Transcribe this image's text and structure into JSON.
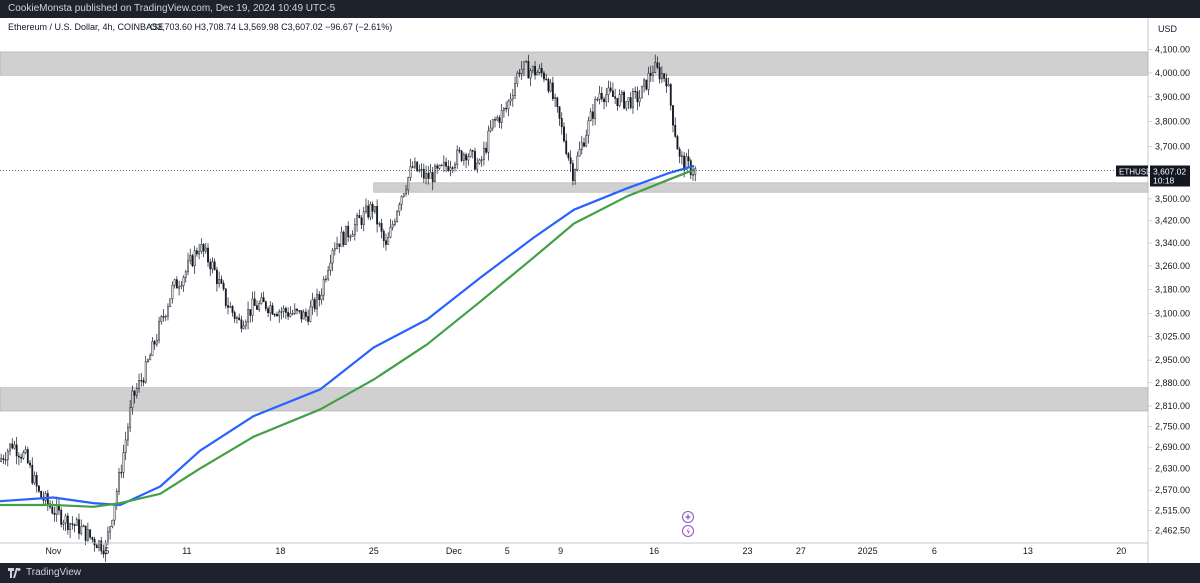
{
  "header": {
    "publish_line": "CookieMonsta published on TradingView.com, Dec 19, 2024 10:49 UTC-5"
  },
  "footer": {
    "brand": "TradingView"
  },
  "colors": {
    "background": "#ffffff",
    "frame": "#1e222d",
    "zone": "#d0d0d0",
    "ema_fast": "#2962ff",
    "ema_slow": "#43a047",
    "candle": "#131722",
    "badge": "#131722"
  },
  "icons": [
    "plus-circle-icon",
    "lightning-circle-icon",
    "tradingview-logo-icon"
  ],
  "chart_data": {
    "type": "candlestick",
    "title": "Ethereum / U.S. Dollar, 4h, COINBASE",
    "ohlc_label": "O3,703.60 H3,708.74 L3,569.98 C3,607.02 −96.67 (−2.61%)",
    "currency": "USD",
    "symbol_badge": "ETHUSD",
    "last_price": "3,607.02",
    "countdown": "10:18",
    "last_price_value": 3607.02,
    "y_scale": "log",
    "y_range": [
      2430,
      4240
    ],
    "x_range": [
      "2024-10-28",
      "2025-01-22"
    ],
    "x_ticks": [
      {
        "label": "Nov",
        "date": "2024-11-01"
      },
      {
        "label": "5",
        "date": "2024-11-05"
      },
      {
        "label": "11",
        "date": "2024-11-11"
      },
      {
        "label": "18",
        "date": "2024-11-18"
      },
      {
        "label": "25",
        "date": "2024-11-25"
      },
      {
        "label": "Dec",
        "date": "2024-12-01"
      },
      {
        "label": "5",
        "date": "2024-12-05"
      },
      {
        "label": "9",
        "date": "2024-12-09"
      },
      {
        "label": "16",
        "date": "2024-12-16"
      },
      {
        "label": "23",
        "date": "2024-12-23"
      },
      {
        "label": "27",
        "date": "2024-12-27"
      },
      {
        "label": "2025",
        "date": "2025-01-01"
      },
      {
        "label": "6",
        "date": "2025-01-06"
      },
      {
        "label": "13",
        "date": "2025-01-13"
      },
      {
        "label": "20",
        "date": "2025-01-20"
      }
    ],
    "y_ticks": [
      {
        "label": "4,100.00",
        "value": 4100
      },
      {
        "label": "4,000.00",
        "value": 4000
      },
      {
        "label": "3,900.00",
        "value": 3900
      },
      {
        "label": "3,800.00",
        "value": 3800
      },
      {
        "label": "3,700.00",
        "value": 3700
      },
      {
        "label": "3,600.00",
        "value": 3600
      },
      {
        "label": "3,500.00",
        "value": 3500
      },
      {
        "label": "3,420.00",
        "value": 3420
      },
      {
        "label": "3,340.00",
        "value": 3340
      },
      {
        "label": "3,260.00",
        "value": 3260
      },
      {
        "label": "3,180.00",
        "value": 3180
      },
      {
        "label": "3,100.00",
        "value": 3100
      },
      {
        "label": "3,025.00",
        "value": 3025
      },
      {
        "label": "2,950.00",
        "value": 2950
      },
      {
        "label": "2,880.00",
        "value": 2880
      },
      {
        "label": "2,810.00",
        "value": 2810
      },
      {
        "label": "2,750.00",
        "value": 2750
      },
      {
        "label": "2,690.00",
        "value": 2690
      },
      {
        "label": "2,630.00",
        "value": 2630
      },
      {
        "label": "2,570.00",
        "value": 2570
      },
      {
        "label": "2,515.00",
        "value": 2515
      },
      {
        "label": "2,462.50",
        "value": 2462.5
      }
    ],
    "zones": [
      {
        "name": "resistance",
        "y_low": 3990,
        "y_high": 4090,
        "x_start": "2024-10-28",
        "x_end": "2025-01-22"
      },
      {
        "name": "support",
        "y_low": 3525,
        "y_high": 3560,
        "x_start": "2024-11-25",
        "x_end": "2025-01-22"
      },
      {
        "name": "demand",
        "y_low": 2795,
        "y_high": 2865,
        "x_start": "2024-10-28",
        "x_end": "2025-01-22"
      }
    ],
    "price_path": [
      [
        "2024-10-28",
        2650
      ],
      [
        "2024-10-29",
        2700
      ],
      [
        "2024-10-30",
        2660
      ],
      [
        "2024-10-31",
        2560
      ],
      [
        "2024-11-01",
        2520
      ],
      [
        "2024-11-02",
        2490
      ],
      [
        "2024-11-03",
        2470
      ],
      [
        "2024-11-04",
        2440
      ],
      [
        "2024-11-05",
        2420
      ],
      [
        "2024-11-06",
        2600
      ],
      [
        "2024-11-07",
        2830
      ],
      [
        "2024-11-08",
        2920
      ],
      [
        "2024-11-09",
        3050
      ],
      [
        "2024-11-10",
        3180
      ],
      [
        "2024-11-11",
        3240
      ],
      [
        "2024-11-12",
        3330
      ],
      [
        "2024-11-13",
        3260
      ],
      [
        "2024-11-14",
        3140
      ],
      [
        "2024-11-15",
        3070
      ],
      [
        "2024-11-16",
        3120
      ],
      [
        "2024-11-17",
        3130
      ],
      [
        "2024-11-18",
        3110
      ],
      [
        "2024-11-19",
        3100
      ],
      [
        "2024-11-20",
        3090
      ],
      [
        "2024-11-21",
        3150
      ],
      [
        "2024-11-22",
        3330
      ],
      [
        "2024-11-23",
        3370
      ],
      [
        "2024-11-24",
        3420
      ],
      [
        "2024-11-25",
        3470
      ],
      [
        "2024-11-26",
        3320
      ],
      [
        "2024-11-27",
        3500
      ],
      [
        "2024-11-28",
        3620
      ],
      [
        "2024-11-29",
        3580
      ],
      [
        "2024-11-30",
        3600
      ],
      [
        "2024-12-01",
        3650
      ],
      [
        "2024-12-02",
        3680
      ],
      [
        "2024-12-03",
        3620
      ],
      [
        "2024-12-04",
        3790
      ],
      [
        "2024-12-05",
        3850
      ],
      [
        "2024-12-06",
        4020
      ],
      [
        "2024-12-07",
        4010
      ],
      [
        "2024-12-08",
        3990
      ],
      [
        "2024-12-09",
        3800
      ],
      [
        "2024-12-10",
        3600
      ],
      [
        "2024-12-11",
        3760
      ],
      [
        "2024-12-12",
        3920
      ],
      [
        "2024-12-13",
        3900
      ],
      [
        "2024-12-14",
        3880
      ],
      [
        "2024-12-15",
        3900
      ],
      [
        "2024-12-16",
        4020
      ],
      [
        "2024-12-17",
        3980
      ],
      [
        "2024-12-18",
        3650
      ],
      [
        "2024-12-19",
        3607
      ]
    ],
    "series": [
      {
        "type": "line",
        "color": "#2962ff",
        "points": [
          [
            "2024-10-28",
            2540
          ],
          [
            "2024-11-01",
            2550
          ],
          [
            "2024-11-04",
            2535
          ],
          [
            "2024-11-06",
            2530
          ],
          [
            "2024-11-09",
            2580
          ],
          [
            "2024-11-12",
            2680
          ],
          [
            "2024-11-16",
            2780
          ],
          [
            "2024-11-21",
            2860
          ],
          [
            "2024-11-25",
            2990
          ],
          [
            "2024-11-29",
            3080
          ],
          [
            "2024-12-03",
            3220
          ],
          [
            "2024-12-07",
            3360
          ],
          [
            "2024-12-10",
            3460
          ],
          [
            "2024-12-14",
            3540
          ],
          [
            "2024-12-17",
            3595
          ],
          [
            "2024-12-19",
            3625
          ]
        ]
      },
      {
        "type": "line",
        "color": "#43a047",
        "points": [
          [
            "2024-10-28",
            2530
          ],
          [
            "2024-11-01",
            2530
          ],
          [
            "2024-11-04",
            2525
          ],
          [
            "2024-11-06",
            2535
          ],
          [
            "2024-11-09",
            2560
          ],
          [
            "2024-11-12",
            2630
          ],
          [
            "2024-11-16",
            2720
          ],
          [
            "2024-11-21",
            2800
          ],
          [
            "2024-11-25",
            2890
          ],
          [
            "2024-11-29",
            3000
          ],
          [
            "2024-12-03",
            3140
          ],
          [
            "2024-12-07",
            3290
          ],
          [
            "2024-12-10",
            3410
          ],
          [
            "2024-12-14",
            3510
          ],
          [
            "2024-12-17",
            3570
          ],
          [
            "2024-12-19",
            3610
          ]
        ]
      }
    ]
  }
}
